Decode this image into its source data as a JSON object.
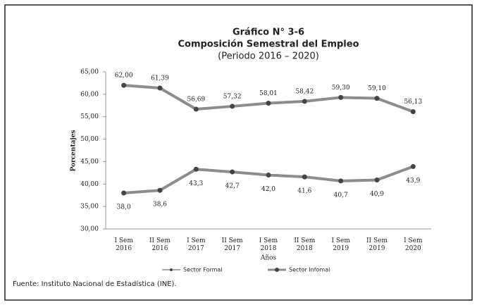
{
  "chart_data": {
    "type": "line",
    "title": "Gráfico N° 3-6",
    "subtitle_main": "Composición Semestral del Empleo",
    "subtitle": "(Periodo 2016 – 2020)",
    "y_label": "Porcentajes",
    "x_label": "Años",
    "source": "Fuente: Instituto Nacional de Estadística (INE).",
    "categories": [
      "I Sem 2016",
      "II Sem 2016",
      "I Sem 2017",
      "II Sem 2017",
      "I Sem 2018",
      "II Sem 2018",
      "I Sem 2019",
      "II Sem 2019",
      "I Sem 2020"
    ],
    "series": [
      {
        "name": "Sector Formal",
        "color": "#8c8c8c",
        "values": [
          62.0,
          61.39,
          56.69,
          57.32,
          58.01,
          58.42,
          59.3,
          59.1,
          56.13
        ],
        "value_labels": [
          "62,00",
          "61,39",
          "56,69",
          "57,32",
          "58,01",
          "58,42",
          "59,30",
          "59,10",
          "56,13"
        ]
      },
      {
        "name": "Sector Infomal",
        "color": "#8c8c8c",
        "values": [
          38.0,
          38.6,
          43.3,
          42.7,
          42.0,
          41.6,
          40.7,
          40.9,
          43.9
        ],
        "value_labels": [
          "38,0",
          "38,6",
          "43,3",
          "42,7",
          "42,0",
          "41,6",
          "40,7",
          "40,9",
          "43,9"
        ]
      }
    ],
    "ylim": [
      30,
      65
    ],
    "yticks": [
      {
        "value": 30,
        "label": "30,00"
      },
      {
        "value": 35,
        "label": "35,00"
      },
      {
        "value": 40,
        "label": "40,00"
      },
      {
        "value": 45,
        "label": "45,00"
      },
      {
        "value": 50,
        "label": "50,00"
      },
      {
        "value": 55,
        "label": "55,00"
      },
      {
        "value": 60,
        "label": "60,00"
      },
      {
        "value": 65,
        "label": "65,00"
      }
    ],
    "grid": false,
    "legend": "bottom"
  }
}
